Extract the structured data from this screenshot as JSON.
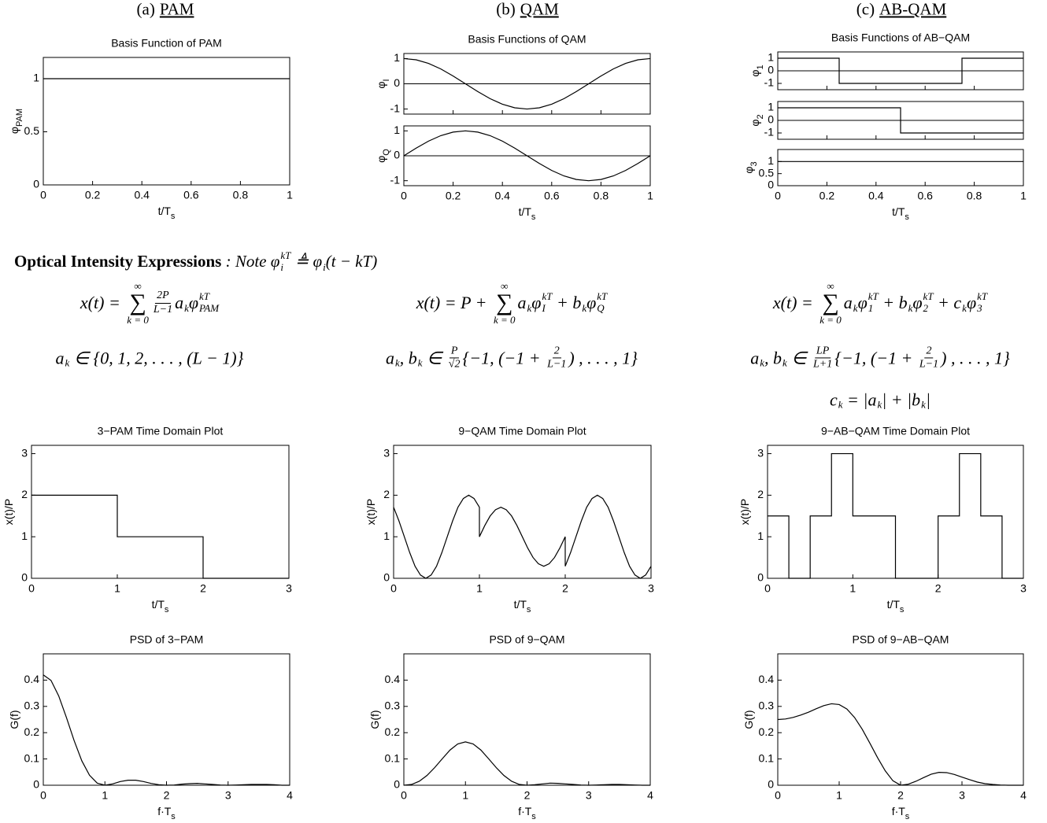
{
  "columns": [
    {
      "label": "(a)",
      "name": "PAM"
    },
    {
      "label": "(b)",
      "name": "QAM"
    },
    {
      "label": "(c)",
      "name": "AB-QAM"
    }
  ],
  "intensity": {
    "heading": "Optical Intensity Expressions",
    "note": [
      " : Note ",
      {
        "b": "φ",
        "sub": "i",
        "sup": "kT"
      },
      " ≜ ",
      {
        "b": "φ",
        "sub": "i"
      },
      "(t − kT)"
    ],
    "equations": [
      [
        [
          "x(t) = ",
          {
            "op": "∑",
            "sub": "k = 0",
            "sup": "∞"
          },
          {
            "num": "2P",
            "den": "L−1"
          },
          {
            "b": "a",
            "sub": "k"
          },
          {
            "b": "φ",
            "sub": "PAM",
            "sup": "kT"
          }
        ],
        [
          {
            "b": "a",
            "sub": "k"
          },
          " ∈ {0, 1, 2, . . . , (L − 1)}"
        ]
      ],
      [
        [
          "x(t) = P + ",
          {
            "op": "∑",
            "sub": "k = 0",
            "sup": "∞"
          },
          {
            "b": "a",
            "sub": "k"
          },
          {
            "b": "φ",
            "sub": "I",
            "sup": "kT"
          },
          " + ",
          {
            "b": "b",
            "sub": "k"
          },
          {
            "b": "φ",
            "sub": "Q",
            "sup": "kT"
          }
        ],
        [
          {
            "b": "a",
            "sub": "k"
          },
          ", ",
          {
            "b": "b",
            "sub": "k"
          },
          " ∈ ",
          {
            "num": "P",
            "den": "√2"
          },
          "{−1, (−1 + ",
          {
            "num": "2",
            "den": "L−1"
          },
          ") , . . . , 1}"
        ]
      ],
      [
        [
          "x(t) = ",
          {
            "op": "∑",
            "sub": "k = 0",
            "sup": "∞"
          },
          {
            "b": "a",
            "sub": "k"
          },
          {
            "b": "φ",
            "sub": "1",
            "sup": "kT"
          },
          " + ",
          {
            "b": "b",
            "sub": "k"
          },
          {
            "b": "φ",
            "sub": "2",
            "sup": "kT"
          },
          " + ",
          {
            "b": "c",
            "sub": "k"
          },
          {
            "b": "φ",
            "sub": "3",
            "sup": "kT"
          }
        ],
        [
          {
            "b": "a",
            "sub": "k"
          },
          ", ",
          {
            "b": "b",
            "sub": "k"
          },
          " ∈ ",
          {
            "num": "LP",
            "den": "L+1"
          },
          "{−1, (−1 + ",
          {
            "num": "2",
            "den": "L−1"
          },
          ") , . . . , 1}"
        ],
        [
          {
            "b": "c",
            "sub": "k"
          },
          " = |",
          {
            "b": "a",
            "sub": "k"
          },
          "| + |",
          {
            "b": "b",
            "sub": "k"
          },
          "|"
        ]
      ]
    ]
  },
  "chart_data": [
    {
      "type": "line",
      "title": "Basis Function of PAM",
      "color": "#000000",
      "xlabel": {
        "text": "t/T",
        "sub": "s"
      },
      "xlim": [
        0,
        1
      ],
      "xticks": [
        0,
        0.2,
        0.4,
        0.6,
        0.8,
        1
      ],
      "panels": [
        {
          "ylabel": {
            "text": "φ",
            "sub": "PAM"
          },
          "ylim": [
            0,
            1.2
          ],
          "yticks": [
            0,
            0.5,
            1
          ],
          "x": [
            0,
            1
          ],
          "values": [
            1,
            1
          ]
        }
      ]
    },
    {
      "type": "line",
      "title": "Basis Functions of QAM",
      "color": "#000000",
      "xlabel": {
        "text": "t/T",
        "sub": "s"
      },
      "xlim": [
        0,
        1
      ],
      "xticks": [
        0,
        0.2,
        0.4,
        0.6,
        0.8,
        1
      ],
      "panels": [
        {
          "ylabel": {
            "text": "φ",
            "sub": "I"
          },
          "ylim": [
            -1.2,
            1.2
          ],
          "yticks": [
            -1,
            0,
            1
          ],
          "hline": 0,
          "x": [
            0,
            0.05,
            0.1,
            0.15,
            0.2,
            0.25,
            0.3,
            0.35,
            0.4,
            0.45,
            0.5,
            0.55,
            0.6,
            0.65,
            0.7,
            0.75,
            0.8,
            0.85,
            0.9,
            0.95,
            1
          ],
          "values": [
            1,
            0.951,
            0.809,
            0.588,
            0.309,
            0,
            -0.309,
            -0.588,
            -0.809,
            -0.951,
            -1,
            -0.951,
            -0.809,
            -0.588,
            -0.309,
            0,
            0.309,
            0.588,
            0.809,
            0.951,
            1
          ]
        },
        {
          "ylabel": {
            "text": "φ",
            "sub": "Q"
          },
          "ylim": [
            -1.2,
            1.2
          ],
          "yticks": [
            -1,
            0,
            1
          ],
          "hline": 0,
          "x": [
            0,
            0.05,
            0.1,
            0.15,
            0.2,
            0.25,
            0.3,
            0.35,
            0.4,
            0.45,
            0.5,
            0.55,
            0.6,
            0.65,
            0.7,
            0.75,
            0.8,
            0.85,
            0.9,
            0.95,
            1
          ],
          "values": [
            0,
            0.309,
            0.588,
            0.809,
            0.951,
            1,
            0.951,
            0.809,
            0.588,
            0.309,
            0,
            -0.309,
            -0.588,
            -0.809,
            -0.951,
            -1,
            -0.951,
            -0.809,
            -0.588,
            -0.309,
            0
          ]
        }
      ]
    },
    {
      "type": "line",
      "title": "Basis Functions of AB−QAM",
      "color": "#000000",
      "xlabel": {
        "text": "t/T",
        "sub": "s"
      },
      "xlim": [
        0,
        1
      ],
      "xticks": [
        0,
        0.2,
        0.4,
        0.6,
        0.8,
        1
      ],
      "panels": [
        {
          "ylabel": {
            "text": "φ",
            "sub": "1"
          },
          "ylim": [
            -1.5,
            1.5
          ],
          "yticks": [
            -1,
            0,
            1
          ],
          "hline": 0,
          "x": [
            0,
            0.25,
            0.25,
            0.75,
            0.75,
            1
          ],
          "values": [
            1,
            1,
            -1,
            -1,
            1,
            1
          ]
        },
        {
          "ylabel": {
            "text": "φ",
            "sub": "2"
          },
          "ylim": [
            -1.5,
            1.5
          ],
          "yticks": [
            -1,
            0,
            1
          ],
          "hline": 0,
          "x": [
            0,
            0.5,
            0.5,
            1
          ],
          "values": [
            1,
            1,
            -1,
            -1
          ]
        },
        {
          "ylabel": {
            "text": "φ",
            "sub": "3"
          },
          "ylim": [
            0,
            1.5
          ],
          "yticks": [
            0,
            0.5,
            1
          ],
          "x": [
            0,
            1
          ],
          "values": [
            1,
            1
          ]
        }
      ]
    },
    {
      "type": "line",
      "title": "3−PAM Time Domain Plot",
      "color": "#000000",
      "xlabel": {
        "text": "t/T",
        "sub": "s"
      },
      "xlim": [
        0,
        3
      ],
      "xticks": [
        0,
        1,
        2,
        3
      ],
      "panels": [
        {
          "ylabel": {
            "text": "x(t)/P"
          },
          "ylim": [
            0,
            3.2
          ],
          "yticks": [
            0,
            1,
            2,
            3
          ],
          "x": [
            0,
            1,
            1,
            2,
            2,
            3
          ],
          "values": [
            2,
            2,
            1,
            1,
            0,
            0
          ]
        }
      ]
    },
    {
      "type": "line",
      "title": "9−QAM Time Domain Plot",
      "color": "#000000",
      "xlabel": {
        "text": "t/T",
        "sub": "s"
      },
      "xlim": [
        0,
        3
      ],
      "xticks": [
        0,
        1,
        2,
        3
      ],
      "panels": [
        {
          "ylabel": {
            "text": "x(t)/P"
          },
          "ylim": [
            0,
            3.2
          ],
          "yticks": [
            0,
            1,
            2,
            3
          ],
          "x": [
            0,
            0.0625,
            0.125,
            0.1875,
            0.25,
            0.3125,
            0.375,
            0.4375,
            0.5,
            0.5625,
            0.625,
            0.6875,
            0.75,
            0.8125,
            0.875,
            0.9375,
            1,
            1,
            1.0625,
            1.125,
            1.1875,
            1.25,
            1.3125,
            1.375,
            1.4375,
            1.5,
            1.5625,
            1.625,
            1.6875,
            1.75,
            1.8125,
            1.875,
            1.9375,
            2,
            2,
            2.0625,
            2.125,
            2.1875,
            2.25,
            2.3125,
            2.375,
            2.4375,
            2.5,
            2.5625,
            2.625,
            2.6875,
            2.75,
            2.8125,
            2.875,
            2.9375,
            3
          ],
          "values": [
            1.71,
            1.38,
            1,
            0.62,
            0.29,
            0.08,
            0,
            0.08,
            0.29,
            0.62,
            1,
            1.38,
            1.71,
            1.92,
            2,
            1.92,
            1.71,
            1,
            1.27,
            1.5,
            1.65,
            1.71,
            1.65,
            1.5,
            1.27,
            1,
            0.73,
            0.5,
            0.35,
            0.29,
            0.35,
            0.5,
            0.73,
            1,
            0.29,
            0.62,
            1,
            1.38,
            1.71,
            1.92,
            2,
            1.92,
            1.71,
            1.38,
            1,
            0.62,
            0.29,
            0.08,
            0,
            0.08,
            0.29
          ]
        }
      ]
    },
    {
      "type": "line",
      "title": "9−AB−QAM Time Domain Plot",
      "color": "#000000",
      "xlabel": {
        "text": "t/T",
        "sub": "s"
      },
      "xlim": [
        0,
        3
      ],
      "xticks": [
        0,
        1,
        2,
        3
      ],
      "panels": [
        {
          "ylabel": {
            "text": "x(t)/P"
          },
          "ylim": [
            0,
            3.2
          ],
          "yticks": [
            0,
            1,
            2,
            3
          ],
          "x": [
            0,
            0.25,
            0.25,
            0.5,
            0.5,
            0.75,
            0.75,
            1,
            1,
            1.5,
            1.5,
            2,
            2,
            2.25,
            2.25,
            2.5,
            2.5,
            2.75,
            2.75,
            3
          ],
          "values": [
            1.5,
            1.5,
            0,
            0,
            1.5,
            1.5,
            3,
            3,
            1.5,
            1.5,
            0,
            0,
            1.5,
            1.5,
            3,
            3,
            1.5,
            1.5,
            0,
            0
          ]
        }
      ]
    },
    {
      "type": "line",
      "title": "PSD of 3−PAM",
      "color": "#000000",
      "xlabel": {
        "text": "f·T",
        "sub": "s"
      },
      "xlim": [
        0,
        4
      ],
      "xticks": [
        0,
        1,
        2,
        3,
        4
      ],
      "panels": [
        {
          "ylabel": {
            "text": "G(f)"
          },
          "ylim": [
            0,
            0.5
          ],
          "yticks": [
            0,
            0.1,
            0.2,
            0.3,
            0.4
          ],
          "x": [
            0,
            0.125,
            0.25,
            0.375,
            0.5,
            0.625,
            0.75,
            0.875,
            1,
            1.125,
            1.25,
            1.375,
            1.5,
            1.625,
            1.75,
            1.875,
            2,
            2.125,
            2.25,
            2.375,
            2.5,
            2.625,
            2.75,
            2.875,
            3,
            3.125,
            3.25,
            3.375,
            3.5,
            3.625,
            3.75,
            3.875,
            4
          ],
          "values": [
            0.42,
            0.399,
            0.34,
            0.258,
            0.17,
            0.093,
            0.038,
            0.008,
            0,
            0.005,
            0.014,
            0.019,
            0.019,
            0.014,
            0.007,
            0.002,
            0,
            0.001,
            0.004,
            0.006,
            0.007,
            0.005,
            0.003,
            0.001,
            0,
            0.001,
            0.002,
            0.003,
            0.003,
            0.003,
            0.002,
            0,
            0
          ]
        }
      ]
    },
    {
      "type": "line",
      "title": "PSD of 9−QAM",
      "color": "#000000",
      "xlabel": {
        "text": "f·T",
        "sub": "s"
      },
      "xlim": [
        0,
        4
      ],
      "xticks": [
        0,
        1,
        2,
        3,
        4
      ],
      "panels": [
        {
          "ylabel": {
            "text": "G(f)"
          },
          "ylim": [
            0,
            0.5
          ],
          "yticks": [
            0,
            0.1,
            0.2,
            0.3,
            0.4
          ],
          "x": [
            0,
            0.125,
            0.25,
            0.375,
            0.5,
            0.625,
            0.75,
            0.875,
            1,
            1.125,
            1.25,
            1.375,
            1.5,
            1.625,
            1.75,
            1.875,
            2,
            2.125,
            2.25,
            2.375,
            2.5,
            2.625,
            2.75,
            2.875,
            3,
            3.125,
            3.25,
            3.375,
            3.5,
            3.625,
            3.75,
            3.875,
            4
          ],
          "values": [
            0,
            0.003,
            0.015,
            0.037,
            0.067,
            0.101,
            0.134,
            0.157,
            0.165,
            0.157,
            0.134,
            0.101,
            0.067,
            0.037,
            0.015,
            0.003,
            0,
            0.002,
            0.005,
            0.008,
            0.007,
            0.005,
            0.003,
            0.001,
            0,
            0.001,
            0.002,
            0.003,
            0.003,
            0.002,
            0.001,
            0,
            0
          ]
        }
      ]
    },
    {
      "type": "line",
      "title": "PSD of 9−AB−QAM",
      "color": "#000000",
      "xlabel": {
        "text": "f·T",
        "sub": "s"
      },
      "xlim": [
        0,
        4
      ],
      "xticks": [
        0,
        1,
        2,
        3,
        4
      ],
      "panels": [
        {
          "ylabel": {
            "text": "G(f)"
          },
          "ylim": [
            0,
            0.5
          ],
          "yticks": [
            0,
            0.1,
            0.2,
            0.3,
            0.4
          ],
          "x": [
            0,
            0.125,
            0.25,
            0.375,
            0.5,
            0.625,
            0.75,
            0.875,
            1,
            1.125,
            1.25,
            1.375,
            1.5,
            1.625,
            1.75,
            1.875,
            2,
            2.125,
            2.25,
            2.375,
            2.5,
            2.625,
            2.75,
            2.875,
            3,
            3.125,
            3.25,
            3.375,
            3.5,
            3.625,
            3.75,
            3.875,
            4
          ],
          "values": [
            0.25,
            0.252,
            0.258,
            0.267,
            0.278,
            0.291,
            0.303,
            0.31,
            0.307,
            0.29,
            0.258,
            0.213,
            0.16,
            0.105,
            0.055,
            0.017,
            0,
            0.004,
            0.015,
            0.029,
            0.042,
            0.049,
            0.048,
            0.041,
            0.031,
            0.021,
            0.012,
            0.006,
            0.003,
            0.001,
            0,
            0,
            0
          ]
        }
      ]
    }
  ]
}
